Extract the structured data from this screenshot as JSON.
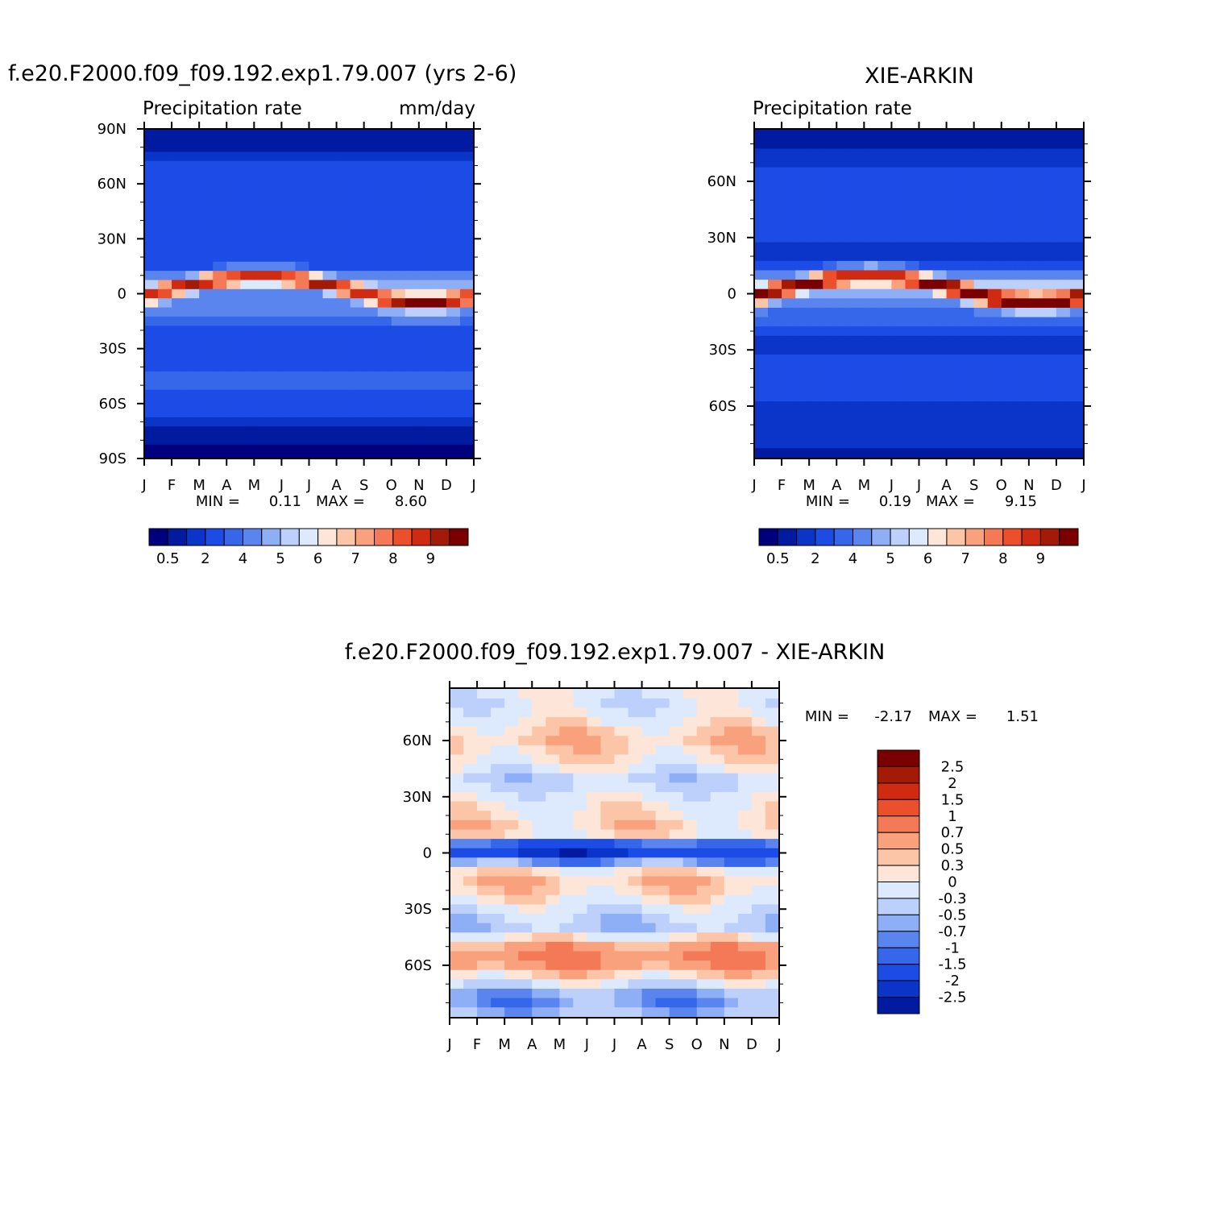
{
  "months": [
    "J",
    "F",
    "M",
    "A",
    "M",
    "J",
    "J",
    "A",
    "S",
    "O",
    "N",
    "D",
    "J"
  ],
  "lat_bands": [
    {
      "lat": 90,
      "model": 0.3,
      "obs": 0.3,
      "diff": 0.2
    },
    {
      "lat": 85,
      "model": 0.4,
      "obs": 0.4,
      "diff": 0.2
    },
    {
      "lat": 80,
      "model": 0.6,
      "obs": 0.5,
      "diff": 0.1
    },
    {
      "lat": 75,
      "model": 1.0,
      "obs": 0.8,
      "diff": 0.2
    },
    {
      "lat": 70,
      "model": 1.5,
      "obs": 1.2,
      "diff": 0.3
    },
    {
      "lat": 65,
      "model": 2.0,
      "obs": 1.6,
      "diff": 0.5
    },
    {
      "lat": 60,
      "model": 2.3,
      "obs": 1.8,
      "diff": 0.6
    },
    {
      "lat": 55,
      "model": 2.4,
      "obs": 2.0,
      "diff": 0.5
    },
    {
      "lat": 50,
      "model": 2.3,
      "obs": 2.0,
      "diff": 0.4
    },
    {
      "lat": 45,
      "model": 2.2,
      "obs": 2.0,
      "diff": 0.2
    },
    {
      "lat": 40,
      "model": 2.1,
      "obs": 2.2,
      "diff": -0.1
    },
    {
      "lat": 35,
      "model": 2.0,
      "obs": 2.0,
      "diff": 0.0
    },
    {
      "lat": 30,
      "model": 1.7,
      "obs": 1.6,
      "diff": 0.2
    },
    {
      "lat": 25,
      "model": 1.5,
      "obs": 1.2,
      "diff": 0.3
    },
    {
      "lat": 20,
      "model": 1.6,
      "obs": 1.2,
      "diff": 0.4
    },
    {
      "lat": 15,
      "model": 2.8,
      "obs": 2.3,
      "diff": 0.5
    },
    {
      "lat": 10,
      "model": 5.0,
      "obs": 4.5,
      "diff": 0.4
    },
    {
      "lat": 5,
      "model": 7.0,
      "obs": 7.5,
      "diff": -0.6
    },
    {
      "lat": 0,
      "model": 5.5,
      "obs": 6.5,
      "diff": -1.2
    },
    {
      "lat": -5,
      "model": 4.5,
      "obs": 5.0,
      "diff": -0.5
    },
    {
      "lat": -10,
      "model": 4.8,
      "obs": 4.2,
      "diff": 0.4
    },
    {
      "lat": -15,
      "model": 4.0,
      "obs": 3.0,
      "diff": 0.6
    },
    {
      "lat": -20,
      "model": 2.8,
      "obs": 2.2,
      "diff": 0.5
    },
    {
      "lat": -25,
      "model": 1.6,
      "obs": 1.3,
      "diff": 0.3
    },
    {
      "lat": -30,
      "model": 1.6,
      "obs": 1.4,
      "diff": 0.1
    },
    {
      "lat": -35,
      "model": 2.0,
      "obs": 2.0,
      "diff": -0.1
    },
    {
      "lat": -40,
      "model": 2.6,
      "obs": 2.6,
      "diff": -0.2
    },
    {
      "lat": -45,
      "model": 3.0,
      "obs": 2.4,
      "diff": 0.3
    },
    {
      "lat": -50,
      "model": 3.0,
      "obs": 2.2,
      "diff": 0.8
    },
    {
      "lat": -55,
      "model": 2.8,
      "obs": 1.8,
      "diff": 1.0
    },
    {
      "lat": -60,
      "model": 2.2,
      "obs": 1.4,
      "diff": 0.9
    },
    {
      "lat": -65,
      "model": 1.5,
      "obs": 1.1,
      "diff": 0.5
    },
    {
      "lat": -70,
      "model": 1.0,
      "obs": 0.9,
      "diff": 0.1
    },
    {
      "lat": -75,
      "model": 0.5,
      "obs": 0.9,
      "diff": -0.4
    },
    {
      "lat": -80,
      "model": 0.3,
      "obs": 0.8,
      "diff": -0.5
    },
    {
      "lat": -85,
      "model": 0.2,
      "obs": 0.6,
      "diff": -0.3
    },
    {
      "lat": -90,
      "model": 0.1,
      "obs": 0.5,
      "diff": -0.2
    }
  ],
  "palettes": {
    "absolute": [
      "#00007f",
      "#001aa0",
      "#0a35c8",
      "#1d4be6",
      "#3666ea",
      "#5a84ee",
      "#8eaef5",
      "#bcd0fb",
      "#dde9fd",
      "#fde6d8",
      "#fcc5a8",
      "#f9a07c",
      "#f47956",
      "#ec4f2c",
      "#cf2b12",
      "#a31a07",
      "#7a0000"
    ],
    "difference": [
      "#00007f",
      "#001aa0",
      "#0a35c8",
      "#1d4be6",
      "#3666ea",
      "#5a84ee",
      "#8eaef5",
      "#bcd0fb",
      "#dde9fd",
      "#fde6d8",
      "#fcc5a8",
      "#f9a07c",
      "#f47956",
      "#ec4f2c",
      "#cf2b12",
      "#a31a07",
      "#7a0000"
    ]
  },
  "chart_data": [
    {
      "type": "heatmap",
      "title": "f.e20.F2000.f09_f09.192.exp1.79.007 (yrs 2-6)",
      "subtitle_left": "Precipitation rate",
      "subtitle_right": "mm/day",
      "x_ticks": [
        "J",
        "F",
        "M",
        "A",
        "M",
        "J",
        "J",
        "A",
        "S",
        "O",
        "N",
        "D",
        "J"
      ],
      "y_ticks": [
        "90N",
        "60N",
        "30N",
        "0",
        "30S",
        "60S",
        "90S"
      ],
      "ylim": [
        -90,
        90
      ],
      "levels": [
        0.2,
        0.5,
        1,
        2,
        3,
        4,
        5,
        5.5,
        6,
        6.5,
        7,
        7.5,
        8,
        8.5,
        9,
        9.5
      ],
      "colorbar_labels": [
        "0.5",
        "2",
        "4",
        "5",
        "6",
        "7",
        "8",
        "9"
      ],
      "min_label": "MIN =",
      "min_value": "0.11",
      "max_label": "MAX =",
      "max_value": "8.60",
      "itcz_peak": 8.6
    },
    {
      "type": "heatmap",
      "title": "XIE-ARKIN",
      "subtitle_left": "Precipitation rate",
      "subtitle_right": "",
      "x_ticks": [
        "J",
        "F",
        "M",
        "A",
        "M",
        "J",
        "J",
        "A",
        "S",
        "O",
        "N",
        "D",
        "J"
      ],
      "y_ticks": [
        "60N",
        "30N",
        "0",
        "30S",
        "60S"
      ],
      "ylim": [
        -88,
        88
      ],
      "levels": [
        0.2,
        0.5,
        1,
        2,
        3,
        4,
        5,
        5.5,
        6,
        6.5,
        7,
        7.5,
        8,
        8.5,
        9,
        9.5
      ],
      "colorbar_labels": [
        "0.5",
        "2",
        "4",
        "5",
        "6",
        "7",
        "8",
        "9"
      ],
      "min_label": "MIN =",
      "min_value": "0.19",
      "max_label": "MAX =",
      "max_value": "9.15",
      "itcz_peak": 9.15
    },
    {
      "type": "heatmap",
      "title": "f.e20.F2000.f09_f09.192.exp1.79.007 - XIE-ARKIN",
      "x_ticks": [
        "J",
        "F",
        "M",
        "A",
        "M",
        "J",
        "J",
        "A",
        "S",
        "O",
        "N",
        "D",
        "J"
      ],
      "y_ticks": [
        "60N",
        "30N",
        "0",
        "30S",
        "60S"
      ],
      "ylim": [
        -88,
        88
      ],
      "levels": [
        -2.5,
        -2,
        -1.5,
        -1,
        -0.7,
        -0.5,
        -0.3,
        0,
        0.3,
        0.5,
        0.7,
        1,
        1.5,
        2,
        2.5
      ],
      "colorbar_labels": [
        "2.5",
        "2",
        "1.5",
        "1",
        "0.7",
        "0.5",
        "0.3",
        "0",
        "-0.3",
        "-0.5",
        "-0.7",
        "-1",
        "-1.5",
        "-2",
        "-2.5"
      ],
      "min_label": "MIN =",
      "min_value": "-2.17",
      "max_label": "MAX =",
      "max_value": "1.51"
    }
  ]
}
